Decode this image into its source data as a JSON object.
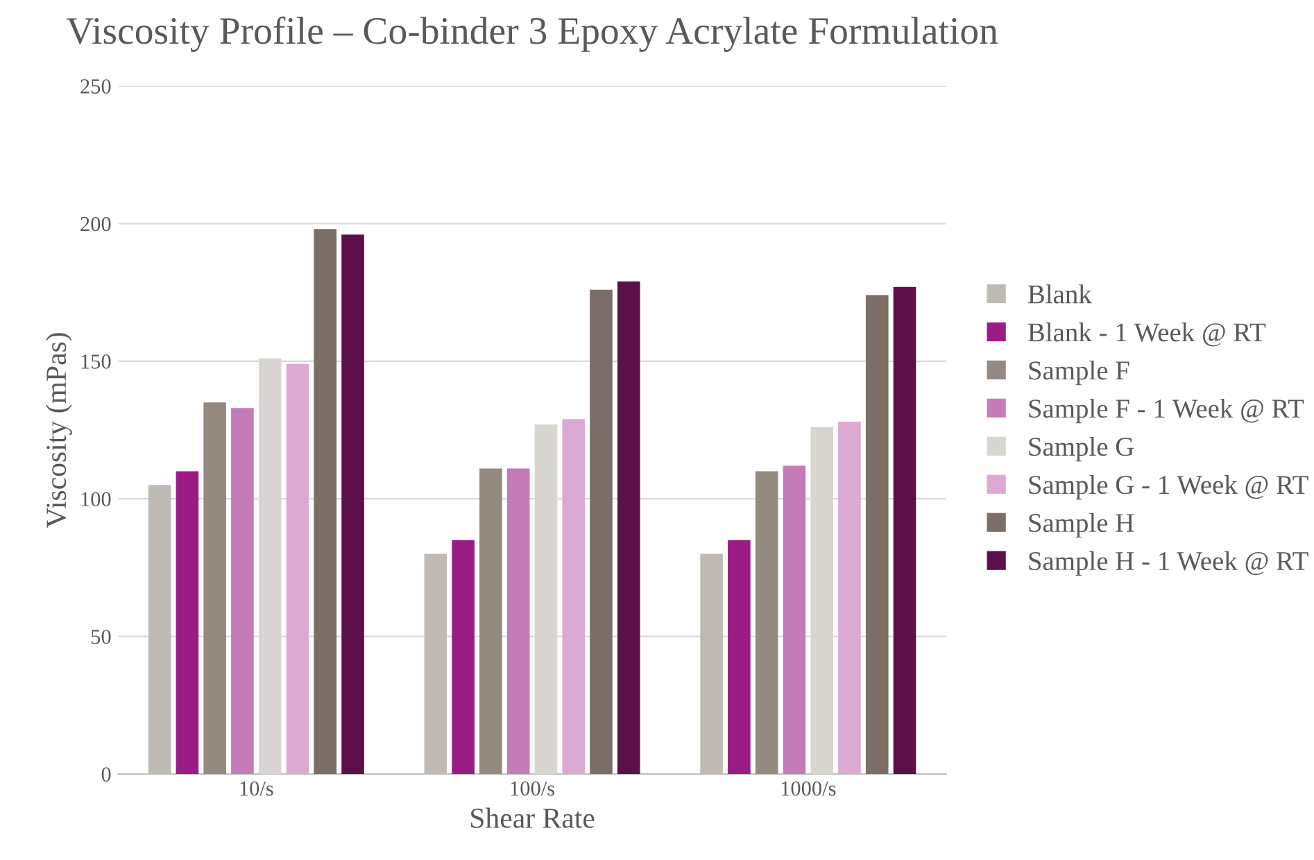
{
  "chart_data": {
    "type": "bar",
    "title": "Viscosity Profile – Co-binder 3 Epoxy Acrylate Formulation",
    "xlabel": "Shear Rate",
    "ylabel": "Viscosity (mPas)",
    "categories": [
      "10/s",
      "100/s",
      "1000/s"
    ],
    "series": [
      {
        "name": "Blank",
        "color": "#c0bab5",
        "values": [
          105,
          80,
          80
        ]
      },
      {
        "name": "Blank - 1 Week @ RT",
        "color": "#9b1c84",
        "values": [
          110,
          85,
          85
        ]
      },
      {
        "name": "Sample F",
        "color": "#948a80",
        "values": [
          135,
          111,
          110
        ]
      },
      {
        "name": "Sample F - 1 Week @ RT",
        "color": "#c47bb8",
        "values": [
          133,
          111,
          112
        ]
      },
      {
        "name": "Sample G",
        "color": "#d9d5d1",
        "values": [
          151,
          127,
          126
        ]
      },
      {
        "name": "Sample G - 1 Week @ RT",
        "color": "#dba9d2",
        "values": [
          149,
          129,
          128
        ]
      },
      {
        "name": "Sample H",
        "color": "#7a6e66",
        "values": [
          198,
          176,
          174
        ]
      },
      {
        "name": "Sample H - 1 Week @ RT",
        "color": "#5c1049",
        "values": [
          196,
          179,
          177
        ]
      }
    ],
    "ylim": [
      0,
      250
    ],
    "yticks": [
      0,
      50,
      100,
      150,
      200,
      250
    ],
    "grid": "y",
    "legend": "right"
  }
}
